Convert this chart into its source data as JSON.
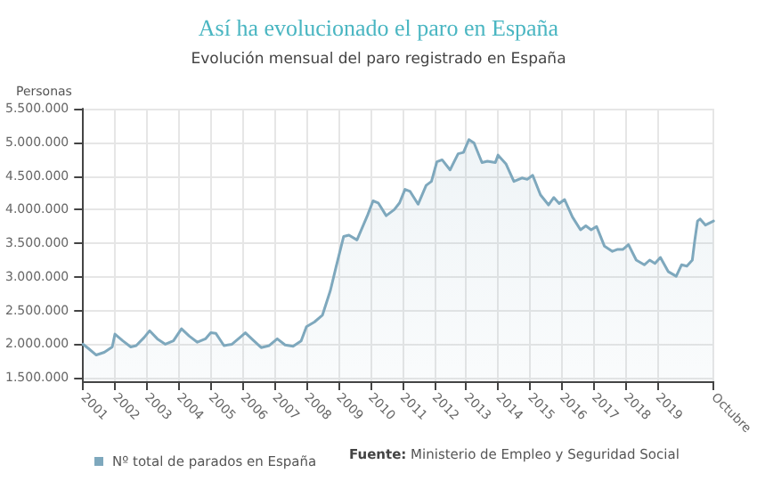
{
  "chart_data": {
    "type": "area",
    "title": "Así ha evolucionado el paro en España",
    "subtitle": "Evolución mensual del paro registrado en España",
    "ylabel": "Personas",
    "x": [
      "2001-01",
      "2001-03",
      "2001-06",
      "2001-09",
      "2001-12",
      "2002-01",
      "2002-04",
      "2002-07",
      "2002-09",
      "2002-12",
      "2003-02",
      "2003-05",
      "2003-08",
      "2003-11",
      "2004-02",
      "2004-05",
      "2004-08",
      "2004-11",
      "2005-01",
      "2005-03",
      "2005-06",
      "2005-09",
      "2005-12",
      "2006-02",
      "2006-05",
      "2006-08",
      "2006-11",
      "2007-02",
      "2007-05",
      "2007-08",
      "2007-11",
      "2008-01",
      "2008-04",
      "2008-07",
      "2008-10",
      "2008-12",
      "2009-03",
      "2009-05",
      "2009-08",
      "2009-12",
      "2010-02",
      "2010-04",
      "2010-07",
      "2010-10",
      "2010-12",
      "2011-02",
      "2011-04",
      "2011-07",
      "2011-10",
      "2011-12",
      "2012-02",
      "2012-04",
      "2012-07",
      "2012-10",
      "2012-12",
      "2013-02",
      "2013-04",
      "2013-07",
      "2013-09",
      "2013-12",
      "2014-01",
      "2014-04",
      "2014-07",
      "2014-10",
      "2014-12",
      "2015-02",
      "2015-05",
      "2015-08",
      "2015-10",
      "2015-12",
      "2016-02",
      "2016-05",
      "2016-08",
      "2016-10",
      "2016-12",
      "2017-02",
      "2017-05",
      "2017-08",
      "2017-10",
      "2017-12",
      "2018-02",
      "2018-05",
      "2018-08",
      "2018-10",
      "2018-12",
      "2019-02",
      "2019-05",
      "2019-08",
      "2019-10",
      "2019-12",
      "2020-02",
      "2020-03",
      "2020-04",
      "2020-05",
      "2020-07",
      "2020-10"
    ],
    "series": [
      {
        "name": "Nº total de parados en España",
        "color": "#7ea8bd",
        "values": [
          2000000,
          1940000,
          1840000,
          1880000,
          1960000,
          2150000,
          2050000,
          1960000,
          1980000,
          2100000,
          2200000,
          2080000,
          2000000,
          2050000,
          2230000,
          2120000,
          2030000,
          2080000,
          2170000,
          2160000,
          1980000,
          2000000,
          2100000,
          2170000,
          2060000,
          1950000,
          1980000,
          2080000,
          1990000,
          1970000,
          2050000,
          2260000,
          2330000,
          2430000,
          2800000,
          3130000,
          3600000,
          3620000,
          3550000,
          3920000,
          4130000,
          4100000,
          3910000,
          4000000,
          4100000,
          4300000,
          4270000,
          4080000,
          4360000,
          4420000,
          4710000,
          4740000,
          4590000,
          4830000,
          4850000,
          5040000,
          4990000,
          4700000,
          4720000,
          4700000,
          4810000,
          4680000,
          4420000,
          4470000,
          4450000,
          4510000,
          4220000,
          4070000,
          4180000,
          4090000,
          4150000,
          3890000,
          3700000,
          3760000,
          3700000,
          3750000,
          3460000,
          3380000,
          3410000,
          3410000,
          3480000,
          3250000,
          3180000,
          3250000,
          3200000,
          3290000,
          3080000,
          3010000,
          3180000,
          3160000,
          3250000,
          3550000,
          3830000,
          3860000,
          3770000,
          3830000
        ]
      }
    ],
    "xlim": [
      "2001-01",
      "2020-10"
    ],
    "xticks": [
      {
        "value": "2001-01",
        "label": "2001"
      },
      {
        "value": "2002-01",
        "label": "2002"
      },
      {
        "value": "2003-01",
        "label": "2003"
      },
      {
        "value": "2004-01",
        "label": "2004"
      },
      {
        "value": "2005-01",
        "label": "2005"
      },
      {
        "value": "2006-01",
        "label": "2006"
      },
      {
        "value": "2007-01",
        "label": "2007"
      },
      {
        "value": "2008-01",
        "label": "2008"
      },
      {
        "value": "2009-01",
        "label": "2009"
      },
      {
        "value": "2010-01",
        "label": "2010"
      },
      {
        "value": "2011-01",
        "label": "2011"
      },
      {
        "value": "2012-01",
        "label": "2012"
      },
      {
        "value": "2013-01",
        "label": "2013"
      },
      {
        "value": "2014-01",
        "label": "2014"
      },
      {
        "value": "2015-01",
        "label": "2015"
      },
      {
        "value": "2016-01",
        "label": "2016"
      },
      {
        "value": "2017-01",
        "label": "2017"
      },
      {
        "value": "2018-01",
        "label": "2018"
      },
      {
        "value": "2019-01",
        "label": "2019"
      },
      {
        "value": "2020-10",
        "label": "Octubre"
      }
    ],
    "ylim": [
      1450000,
      5500000
    ],
    "yticks": [
      {
        "value": 1500000,
        "label": "1.500.000"
      },
      {
        "value": 2000000,
        "label": "2.000.000"
      },
      {
        "value": 2500000,
        "label": "2.500.000"
      },
      {
        "value": 3000000,
        "label": "3.000.000"
      },
      {
        "value": 3500000,
        "label": "3.500.000"
      },
      {
        "value": 4000000,
        "label": "4.000.000"
      },
      {
        "value": 4500000,
        "label": "4.500.000"
      },
      {
        "value": 5000000,
        "label": "5.000.000"
      },
      {
        "value": 5500000,
        "label": "5.500.000"
      }
    ],
    "grid": true,
    "legend": "bottom left",
    "marker": "none",
    "line_style": "solid",
    "annotations": [
      "Fuente: Ministerio de Empleo y Seguridad Social"
    ]
  }
}
